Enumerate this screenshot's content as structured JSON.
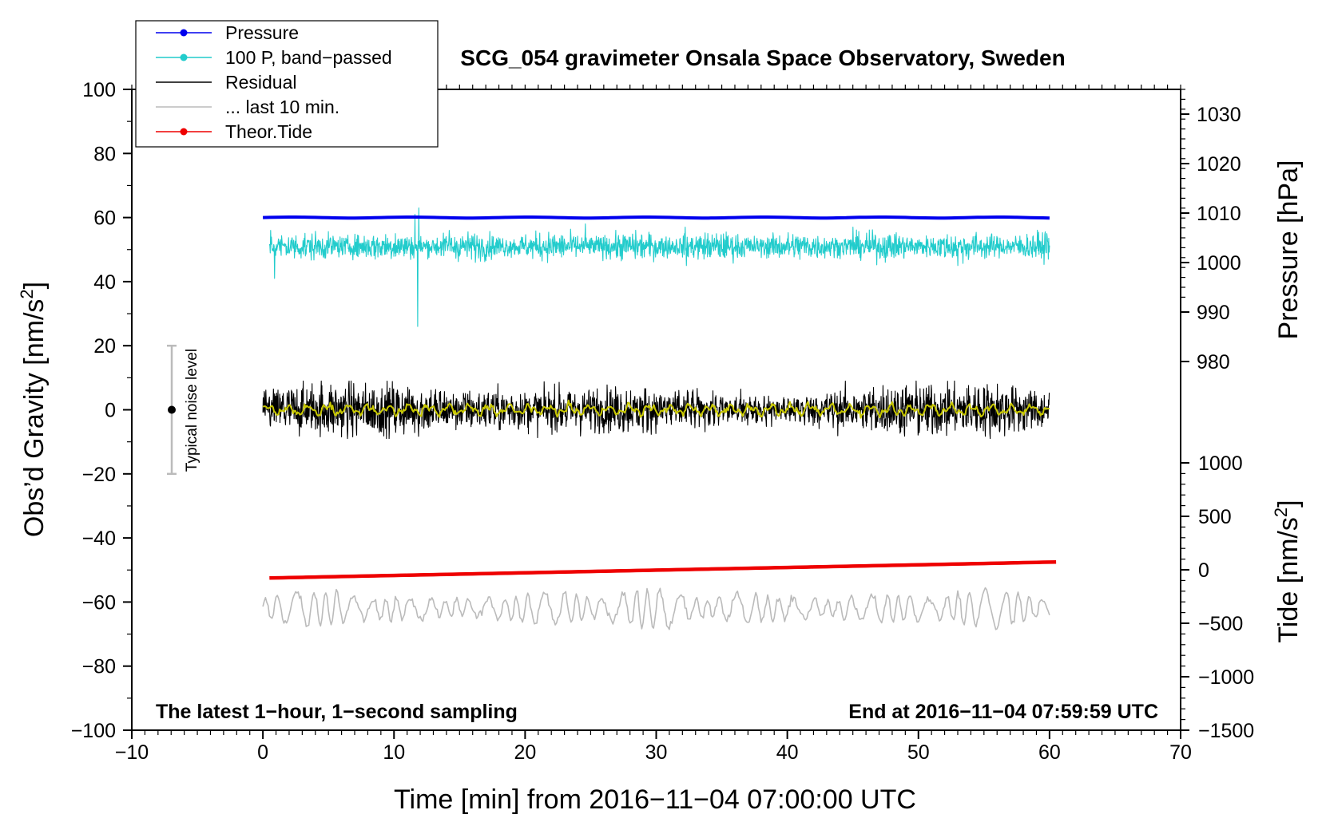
{
  "chart_data": {
    "type": "line",
    "title": "SCG_054 gravimeter Onsala Space Observatory, Sweden",
    "xlabel": "Time [min] from 2016−11−04 07:00:00 UTC",
    "ylabel_left": "Obs’d Gravity [nm/s",
    "ylabel_left_sup": "2",
    "ylabel_left_end": "]",
    "ylabel_pressure": "Pressure [hPa]",
    "ylabel_tide": "Tide [nm/s",
    "ylabel_tide_sup": "2",
    "ylabel_tide_end": "]",
    "xlim": [
      -10,
      70
    ],
    "ylim": [
      -100,
      100
    ],
    "pressure_range_hpa": [
      1010,
      1010
    ],
    "tide_range": [
      -1500,
      1000
    ],
    "x_ticks": [
      "−10",
      "0",
      "10",
      "20",
      "30",
      "40",
      "50",
      "60",
      "70"
    ],
    "y_ticks": [
      "100",
      "80",
      "60",
      "40",
      "20",
      "0",
      "−20",
      "−40",
      "−60",
      "−80",
      "−100"
    ],
    "pressure_ticks": [
      "1030",
      "1020",
      "1010",
      "1000",
      "990",
      "980"
    ],
    "tide_ticks": [
      "1000",
      "500",
      "0",
      "−500",
      "−1000",
      "−1500"
    ],
    "noise_label": "Typical noise level",
    "noise_range": [
      -20,
      20
    ],
    "annotation_left": "The latest 1−hour, 1−second sampling",
    "annotation_right": "End at 2016−11−04 07:59:59 UTC",
    "legend": [
      {
        "label": "Pressure",
        "color": "#0000ee",
        "marker": true
      },
      {
        "label": "100 P, band−passed",
        "color": "#22cccc",
        "marker": true
      },
      {
        "label": "Residual",
        "color": "#000000",
        "marker": false
      },
      {
        "label": "... last 10 min.",
        "color": "#bbbbbb",
        "marker": false
      },
      {
        "label": "Theor.Tide",
        "color": "#ee0000",
        "marker": true
      }
    ],
    "series": [
      {
        "name": "Pressure",
        "color": "#0000ee",
        "x_range": [
          0,
          60
        ],
        "y_level": 60
      },
      {
        "name": "100 P, band−passed",
        "color": "#22cccc",
        "x_range": [
          0.5,
          60
        ],
        "y_center": 51,
        "y_min": 26,
        "y_max": 63
      },
      {
        "name": "Residual",
        "color": "#000000",
        "x_range": [
          0,
          60
        ],
        "y_center": 0,
        "y_min": -9,
        "y_max": 9
      },
      {
        "name": "Residual smoothed",
        "color": "#c8c800",
        "x_range": [
          0,
          60
        ],
        "y_center": 0
      },
      {
        "name": "... last 10 min.",
        "color": "#bbbbbb",
        "x_range": [
          0,
          60
        ],
        "y_center": -62,
        "y_min": -70,
        "y_max": -55
      },
      {
        "name": "Theor.Tide",
        "color": "#ee0000",
        "x": [
          0.5,
          60.5
        ],
        "y": [
          -52.5,
          -47.5
        ]
      }
    ]
  }
}
